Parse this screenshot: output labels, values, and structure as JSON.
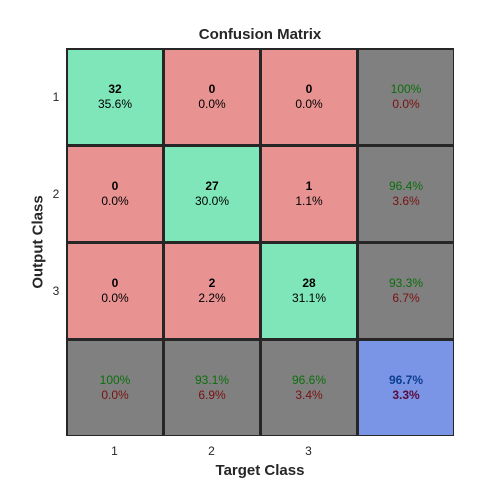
{
  "chart_data": {
    "type": "heatmap",
    "title": "Confusion Matrix",
    "xlabel": "Target Class",
    "ylabel": "Output Class",
    "x_ticks": [
      "1",
      "2",
      "3"
    ],
    "y_ticks": [
      "1",
      "2",
      "3"
    ],
    "counts": [
      [
        32,
        0,
        0
      ],
      [
        0,
        27,
        1
      ],
      [
        0,
        2,
        28
      ]
    ],
    "cell_percent": [
      [
        "35.6%",
        "0.0%",
        "0.0%"
      ],
      [
        "0.0%",
        "30.0%",
        "1.1%"
      ],
      [
        "0.0%",
        "2.2%",
        "31.1%"
      ]
    ],
    "row_summary": [
      {
        "correct": "100%",
        "error": "0.0%"
      },
      {
        "correct": "96.4%",
        "error": "3.6%"
      },
      {
        "correct": "93.3%",
        "error": "6.7%"
      }
    ],
    "col_summary": [
      {
        "correct": "100%",
        "error": "0.0%"
      },
      {
        "correct": "93.1%",
        "error": "6.9%"
      },
      {
        "correct": "96.6%",
        "error": "3.4%"
      }
    ],
    "overall": {
      "correct": "96.7%",
      "error": "3.3%"
    },
    "colors": {
      "correct": "#7ee6b8",
      "incorrect": "#e89292",
      "summary": "#808080",
      "overall": "#7b95e6",
      "grid": "#262626"
    }
  }
}
